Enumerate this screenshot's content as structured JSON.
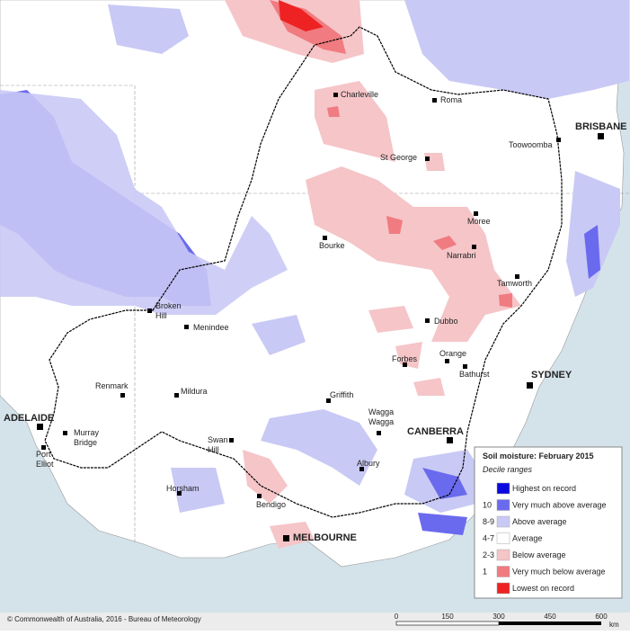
{
  "legend": {
    "title": "Soil moisture: February 2015",
    "subtitle": "Decile ranges",
    "rows": [
      {
        "code": "",
        "label": "Highest on record",
        "color": "#0a0ae0"
      },
      {
        "code": "10",
        "label": "Very much above average",
        "color": "#6a6aee"
      },
      {
        "code": "8-9",
        "label": "Above average",
        "color": "#c9c9f5"
      },
      {
        "code": "4-7",
        "label": "Average",
        "color": "#ffffff"
      },
      {
        "code": "2-3",
        "label": "Below average",
        "color": "#f5c5c8"
      },
      {
        "code": "1",
        "label": "Very much below average",
        "color": "#f07b80"
      },
      {
        "code": "",
        "label": "Lowest on record",
        "color": "#ee2222"
      }
    ]
  },
  "places": [
    {
      "lines": [
        "Charleville"
      ]
    },
    {
      "lines": [
        "Roma"
      ]
    },
    {
      "lines": [
        "BRISBANE"
      ]
    },
    {
      "lines": [
        "Toowoomba"
      ]
    },
    {
      "lines": [
        "St George"
      ]
    },
    {
      "lines": [
        "Moree"
      ]
    },
    {
      "lines": [
        "Bourke"
      ]
    },
    {
      "lines": [
        "Narrabri"
      ]
    },
    {
      "lines": [
        "Tamworth"
      ]
    },
    {
      "lines": [
        "Broken",
        "Hill"
      ]
    },
    {
      "lines": [
        "Menindee"
      ]
    },
    {
      "lines": [
        "Dubbo"
      ]
    },
    {
      "lines": [
        "Orange"
      ]
    },
    {
      "lines": [
        "Forbes"
      ]
    },
    {
      "lines": [
        "Bathurst"
      ]
    },
    {
      "lines": [
        "SYDNEY"
      ]
    },
    {
      "lines": [
        "Renmark"
      ]
    },
    {
      "lines": [
        "Mildura"
      ]
    },
    {
      "lines": [
        "Griffith"
      ]
    },
    {
      "lines": [
        "Wagga",
        "Wagga"
      ]
    },
    {
      "lines": [
        "ADELAIDE"
      ]
    },
    {
      "lines": [
        "Murray",
        "Bridge"
      ]
    },
    {
      "lines": [
        "CANBERRA"
      ]
    },
    {
      "lines": [
        "Swan",
        "Hill"
      ]
    },
    {
      "lines": [
        "Port",
        "Elliot"
      ]
    },
    {
      "lines": [
        "Albury"
      ]
    },
    {
      "lines": [
        "Horsham"
      ]
    },
    {
      "lines": [
        "Bendigo"
      ]
    },
    {
      "lines": [
        "MELBOURNE"
      ]
    }
  ],
  "footer": {
    "copyright": "© Commonwealth of Australia, 2016 - Bureau of Meteorology",
    "scale_ticks": [
      "0",
      "150",
      "300",
      "450",
      "600"
    ],
    "scale_unit": "km"
  }
}
